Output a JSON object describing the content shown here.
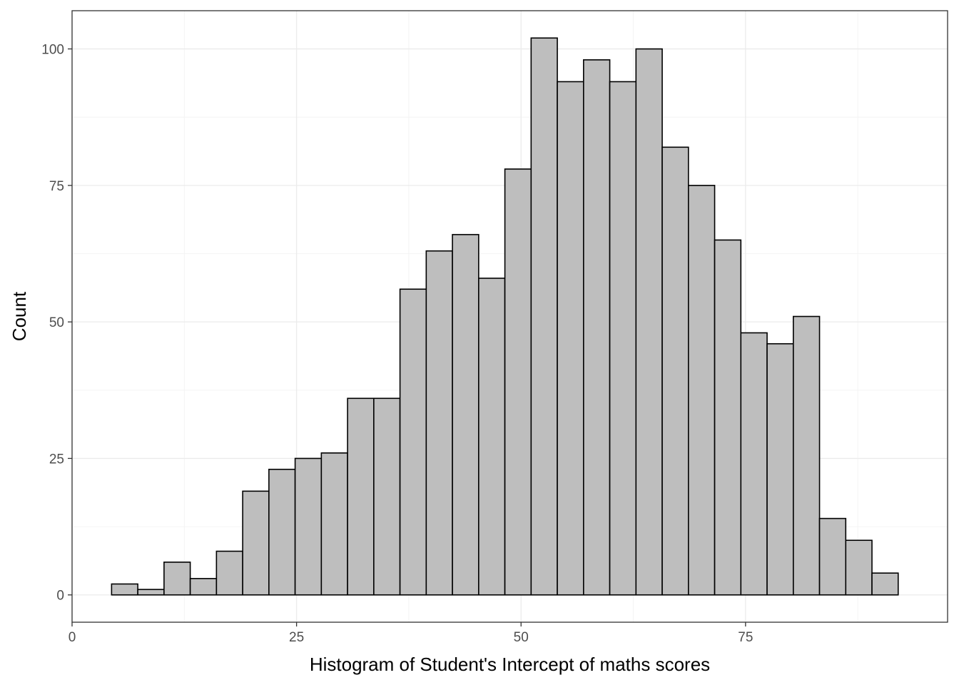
{
  "chart_data": {
    "type": "bar",
    "subtype": "histogram",
    "xlabel": "Histogram of Student's Intercept of maths scores",
    "ylabel": "Count",
    "xlim": [
      0,
      97.5
    ],
    "ylim": [
      -5,
      107
    ],
    "x_ticks": [
      0,
      25,
      50,
      75
    ],
    "y_ticks": [
      0,
      25,
      50,
      75,
      100
    ],
    "bin_start": 4.4,
    "bin_width": 2.92,
    "values": [
      2,
      1,
      6,
      3,
      8,
      19,
      23,
      25,
      26,
      36,
      36,
      56,
      63,
      66,
      58,
      78,
      102,
      94,
      98,
      94,
      100,
      82,
      75,
      65,
      48,
      46,
      51,
      14,
      10,
      4
    ],
    "grid": true,
    "colors": {
      "bar_fill": "#bebebe",
      "bar_stroke": "#000000",
      "background": "#ffffff",
      "grid": "#ebebeb"
    }
  }
}
